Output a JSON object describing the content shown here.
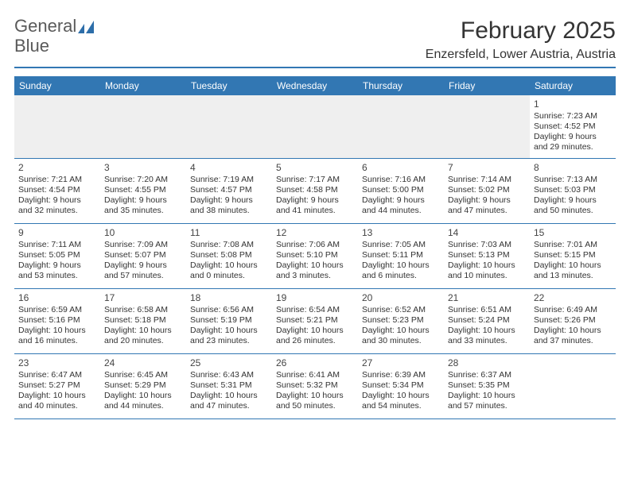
{
  "logo": {
    "part1": "General",
    "part2": "Blue"
  },
  "title": "February 2025",
  "location": "Enzersfeld, Lower Austria, Austria",
  "daynames": [
    "Sunday",
    "Monday",
    "Tuesday",
    "Wednesday",
    "Thursday",
    "Friday",
    "Saturday"
  ],
  "colors": {
    "accent": "#3277b3",
    "header_bg": "#3277b3",
    "header_text": "#ffffff",
    "empty_bg": "#efefef",
    "text": "#333333"
  },
  "fonts": {
    "title_size": 30,
    "location_size": 16,
    "dayheader_size": 12,
    "daynum_size": 12,
    "info_size": 10.5
  },
  "weeks": [
    [
      {},
      {},
      {},
      {},
      {},
      {},
      {
        "n": "1",
        "sr": "Sunrise: 7:23 AM",
        "ss": "Sunset: 4:52 PM",
        "d1": "Daylight: 9 hours",
        "d2": "and 29 minutes."
      }
    ],
    [
      {
        "n": "2",
        "sr": "Sunrise: 7:21 AM",
        "ss": "Sunset: 4:54 PM",
        "d1": "Daylight: 9 hours",
        "d2": "and 32 minutes."
      },
      {
        "n": "3",
        "sr": "Sunrise: 7:20 AM",
        "ss": "Sunset: 4:55 PM",
        "d1": "Daylight: 9 hours",
        "d2": "and 35 minutes."
      },
      {
        "n": "4",
        "sr": "Sunrise: 7:19 AM",
        "ss": "Sunset: 4:57 PM",
        "d1": "Daylight: 9 hours",
        "d2": "and 38 minutes."
      },
      {
        "n": "5",
        "sr": "Sunrise: 7:17 AM",
        "ss": "Sunset: 4:58 PM",
        "d1": "Daylight: 9 hours",
        "d2": "and 41 minutes."
      },
      {
        "n": "6",
        "sr": "Sunrise: 7:16 AM",
        "ss": "Sunset: 5:00 PM",
        "d1": "Daylight: 9 hours",
        "d2": "and 44 minutes."
      },
      {
        "n": "7",
        "sr": "Sunrise: 7:14 AM",
        "ss": "Sunset: 5:02 PM",
        "d1": "Daylight: 9 hours",
        "d2": "and 47 minutes."
      },
      {
        "n": "8",
        "sr": "Sunrise: 7:13 AM",
        "ss": "Sunset: 5:03 PM",
        "d1": "Daylight: 9 hours",
        "d2": "and 50 minutes."
      }
    ],
    [
      {
        "n": "9",
        "sr": "Sunrise: 7:11 AM",
        "ss": "Sunset: 5:05 PM",
        "d1": "Daylight: 9 hours",
        "d2": "and 53 minutes."
      },
      {
        "n": "10",
        "sr": "Sunrise: 7:09 AM",
        "ss": "Sunset: 5:07 PM",
        "d1": "Daylight: 9 hours",
        "d2": "and 57 minutes."
      },
      {
        "n": "11",
        "sr": "Sunrise: 7:08 AM",
        "ss": "Sunset: 5:08 PM",
        "d1": "Daylight: 10 hours",
        "d2": "and 0 minutes."
      },
      {
        "n": "12",
        "sr": "Sunrise: 7:06 AM",
        "ss": "Sunset: 5:10 PM",
        "d1": "Daylight: 10 hours",
        "d2": "and 3 minutes."
      },
      {
        "n": "13",
        "sr": "Sunrise: 7:05 AM",
        "ss": "Sunset: 5:11 PM",
        "d1": "Daylight: 10 hours",
        "d2": "and 6 minutes."
      },
      {
        "n": "14",
        "sr": "Sunrise: 7:03 AM",
        "ss": "Sunset: 5:13 PM",
        "d1": "Daylight: 10 hours",
        "d2": "and 10 minutes."
      },
      {
        "n": "15",
        "sr": "Sunrise: 7:01 AM",
        "ss": "Sunset: 5:15 PM",
        "d1": "Daylight: 10 hours",
        "d2": "and 13 minutes."
      }
    ],
    [
      {
        "n": "16",
        "sr": "Sunrise: 6:59 AM",
        "ss": "Sunset: 5:16 PM",
        "d1": "Daylight: 10 hours",
        "d2": "and 16 minutes."
      },
      {
        "n": "17",
        "sr": "Sunrise: 6:58 AM",
        "ss": "Sunset: 5:18 PM",
        "d1": "Daylight: 10 hours",
        "d2": "and 20 minutes."
      },
      {
        "n": "18",
        "sr": "Sunrise: 6:56 AM",
        "ss": "Sunset: 5:19 PM",
        "d1": "Daylight: 10 hours",
        "d2": "and 23 minutes."
      },
      {
        "n": "19",
        "sr": "Sunrise: 6:54 AM",
        "ss": "Sunset: 5:21 PM",
        "d1": "Daylight: 10 hours",
        "d2": "and 26 minutes."
      },
      {
        "n": "20",
        "sr": "Sunrise: 6:52 AM",
        "ss": "Sunset: 5:23 PM",
        "d1": "Daylight: 10 hours",
        "d2": "and 30 minutes."
      },
      {
        "n": "21",
        "sr": "Sunrise: 6:51 AM",
        "ss": "Sunset: 5:24 PM",
        "d1": "Daylight: 10 hours",
        "d2": "and 33 minutes."
      },
      {
        "n": "22",
        "sr": "Sunrise: 6:49 AM",
        "ss": "Sunset: 5:26 PM",
        "d1": "Daylight: 10 hours",
        "d2": "and 37 minutes."
      }
    ],
    [
      {
        "n": "23",
        "sr": "Sunrise: 6:47 AM",
        "ss": "Sunset: 5:27 PM",
        "d1": "Daylight: 10 hours",
        "d2": "and 40 minutes."
      },
      {
        "n": "24",
        "sr": "Sunrise: 6:45 AM",
        "ss": "Sunset: 5:29 PM",
        "d1": "Daylight: 10 hours",
        "d2": "and 44 minutes."
      },
      {
        "n": "25",
        "sr": "Sunrise: 6:43 AM",
        "ss": "Sunset: 5:31 PM",
        "d1": "Daylight: 10 hours",
        "d2": "and 47 minutes."
      },
      {
        "n": "26",
        "sr": "Sunrise: 6:41 AM",
        "ss": "Sunset: 5:32 PM",
        "d1": "Daylight: 10 hours",
        "d2": "and 50 minutes."
      },
      {
        "n": "27",
        "sr": "Sunrise: 6:39 AM",
        "ss": "Sunset: 5:34 PM",
        "d1": "Daylight: 10 hours",
        "d2": "and 54 minutes."
      },
      {
        "n": "28",
        "sr": "Sunrise: 6:37 AM",
        "ss": "Sunset: 5:35 PM",
        "d1": "Daylight: 10 hours",
        "d2": "and 57 minutes."
      },
      {}
    ]
  ]
}
